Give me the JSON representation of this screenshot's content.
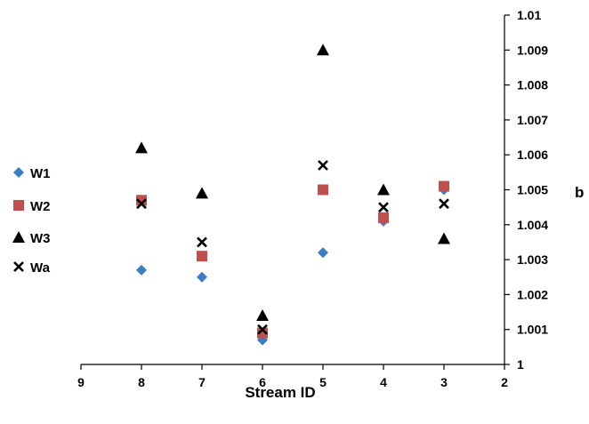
{
  "chart_data": {
    "type": "scatter",
    "title": "",
    "xlabel": "Stream ID",
    "ylabel": "b",
    "x_reversed": true,
    "y_axis_position": "right",
    "xlim": [
      2,
      9
    ],
    "ylim": [
      1.0,
      1.01
    ],
    "x_ticks": [
      "9",
      "8",
      "7",
      "6",
      "5",
      "4",
      "3",
      "2"
    ],
    "y_ticks": [
      "1",
      "1.001",
      "1.002",
      "1.003",
      "1.004",
      "1.005",
      "1.006",
      "1.007",
      "1.008",
      "1.009",
      "1.01"
    ],
    "grid": false,
    "legend_position": "left",
    "series": [
      {
        "name": "W1",
        "marker": "diamond",
        "color": "#3d7dc4",
        "points": [
          [
            8,
            1.0027
          ],
          [
            7,
            1.0025
          ],
          [
            6,
            1.0007
          ],
          [
            5,
            1.0032
          ],
          [
            4,
            1.0041
          ],
          [
            3,
            1.005
          ]
        ]
      },
      {
        "name": "W2",
        "marker": "square",
        "color": "#c0504d",
        "points": [
          [
            8,
            1.0047
          ],
          [
            7,
            1.0031
          ],
          [
            6,
            1.0009
          ],
          [
            5,
            1.005
          ],
          [
            4,
            1.0042
          ],
          [
            3,
            1.0051
          ]
        ]
      },
      {
        "name": "W3",
        "marker": "triangle",
        "color": "#000000",
        "points": [
          [
            8,
            1.0062
          ],
          [
            7,
            1.0049
          ],
          [
            6,
            1.0014
          ],
          [
            5,
            1.009
          ],
          [
            4,
            1.005
          ],
          [
            3,
            1.0036
          ]
        ]
      },
      {
        "name": "Wa",
        "marker": "cross",
        "color": "#000000",
        "points": [
          [
            8,
            1.0046
          ],
          [
            7,
            1.0035
          ],
          [
            6,
            1.001
          ],
          [
            5,
            1.0057
          ],
          [
            4,
            1.0045
          ],
          [
            3,
            1.0046
          ]
        ]
      }
    ]
  }
}
